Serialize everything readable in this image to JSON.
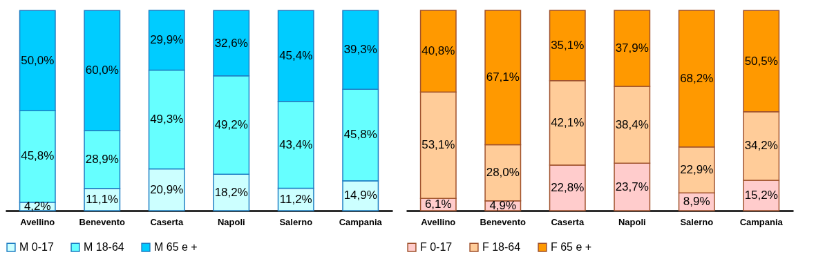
{
  "chart_data": [
    {
      "type": "bar",
      "stacked": true,
      "legend": "bottom",
      "categories": [
        "Avellino",
        "Benevento",
        "Caserta",
        "Napoli",
        "Salerno",
        "Campania"
      ],
      "series": [
        {
          "name": "M 0-17",
          "color": "#ccffff",
          "values": [
            4.2,
            11.1,
            20.9,
            18.2,
            11.2,
            14.9
          ],
          "value_labels": [
            "4,2%",
            "11,1%",
            "20,9%",
            "18,2%",
            "11,2%",
            "14,9%"
          ]
        },
        {
          "name": "M 18-64",
          "color": "#66ffff",
          "values": [
            45.8,
            28.9,
            49.3,
            49.2,
            43.4,
            45.8
          ],
          "value_labels": [
            "45,8%",
            "28,9%",
            "49,3%",
            "49,2%",
            "43,4%",
            "45,8%"
          ]
        },
        {
          "name": "M 65 e +",
          "color": "#00ccff",
          "values": [
            50.0,
            60.0,
            29.9,
            32.6,
            45.4,
            39.3
          ],
          "value_labels": [
            "50,0%",
            "60,0%",
            "29,9%",
            "32,6%",
            "45,4%",
            "39,3%"
          ]
        }
      ]
    },
    {
      "type": "bar",
      "stacked": true,
      "legend": "bottom",
      "categories": [
        "Avellino",
        "Benevento",
        "Caserta",
        "Napoli",
        "Salerno",
        "Campania"
      ],
      "series": [
        {
          "name": "F 0-17",
          "color": "#ffcccc",
          "values": [
            6.1,
            4.9,
            22.8,
            23.7,
            8.9,
            15.2
          ],
          "value_labels": [
            "6,1%",
            "4,9%",
            "22,8%",
            "23,7%",
            "8,9%",
            "15,2%"
          ]
        },
        {
          "name": "F 18-64",
          "color": "#ffcc99",
          "values": [
            53.1,
            28.0,
            42.1,
            38.4,
            22.9,
            34.2
          ],
          "value_labels": [
            "53,1%",
            "28,0%",
            "42,1%",
            "38,4%",
            "22,9%",
            "34,2%"
          ]
        },
        {
          "name": "F 65 e +",
          "color": "#ff9900",
          "values": [
            40.8,
            67.1,
            35.1,
            37.9,
            68.2,
            50.5
          ],
          "value_labels": [
            "40,8%",
            "67,1%",
            "35,1%",
            "37,9%",
            "68,2%",
            "50,5%"
          ]
        }
      ]
    }
  ]
}
